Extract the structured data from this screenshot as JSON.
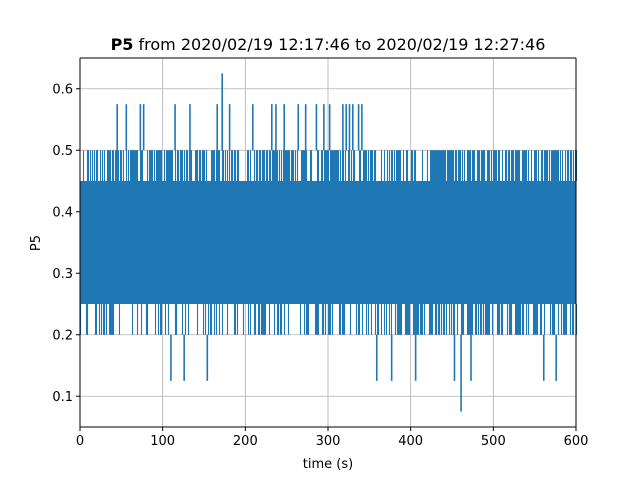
{
  "chart_data": {
    "type": "line",
    "title_bold": "P5",
    "title_rest": " from 2020/02/19 12:17:46 to 2020/02/19 12:27:46",
    "xlabel": "time (s)",
    "ylabel": "P5",
    "xlim": [
      0,
      600
    ],
    "ylim": [
      0.05,
      0.65
    ],
    "xticks": [
      0,
      100,
      200,
      300,
      400,
      500,
      600
    ],
    "yticks": [
      0.1,
      0.2,
      0.3,
      0.4,
      0.5,
      0.6
    ],
    "grid": true,
    "line_color": "#1f77b4",
    "series": [
      {
        "band_x": [
          0,
          600
        ],
        "band_low": 0.25,
        "band_high": 0.45,
        "level_values": [
          0.2,
          0.25,
          0.3,
          0.35,
          0.4,
          0.45,
          0.5
        ],
        "spikes": [
          {
            "x": 45,
            "y": 0.575
          },
          {
            "x": 56,
            "y": 0.575
          },
          {
            "x": 73,
            "y": 0.575
          },
          {
            "x": 77,
            "y": 0.575
          },
          {
            "x": 115,
            "y": 0.575
          },
          {
            "x": 133,
            "y": 0.575
          },
          {
            "x": 166,
            "y": 0.575
          },
          {
            "x": 172,
            "y": 0.625
          },
          {
            "x": 181,
            "y": 0.575
          },
          {
            "x": 209,
            "y": 0.575
          },
          {
            "x": 232,
            "y": 0.575
          },
          {
            "x": 237,
            "y": 0.575
          },
          {
            "x": 247,
            "y": 0.575
          },
          {
            "x": 264,
            "y": 0.575
          },
          {
            "x": 273,
            "y": 0.575
          },
          {
            "x": 286,
            "y": 0.575
          },
          {
            "x": 295,
            "y": 0.575
          },
          {
            "x": 302,
            "y": 0.575
          },
          {
            "x": 318,
            "y": 0.575
          },
          {
            "x": 322,
            "y": 0.575
          },
          {
            "x": 326,
            "y": 0.575
          },
          {
            "x": 330,
            "y": 0.575
          },
          {
            "x": 337,
            "y": 0.575
          },
          {
            "x": 341,
            "y": 0.575
          },
          {
            "x": 110,
            "y": 0.125
          },
          {
            "x": 126,
            "y": 0.125
          },
          {
            "x": 154,
            "y": 0.125
          },
          {
            "x": 359,
            "y": 0.125
          },
          {
            "x": 377,
            "y": 0.125
          },
          {
            "x": 406,
            "y": 0.125
          },
          {
            "x": 453,
            "y": 0.125
          },
          {
            "x": 461,
            "y": 0.075
          },
          {
            "x": 473,
            "y": 0.125
          },
          {
            "x": 561,
            "y": 0.125
          },
          {
            "x": 576,
            "y": 0.125
          }
        ]
      }
    ]
  }
}
